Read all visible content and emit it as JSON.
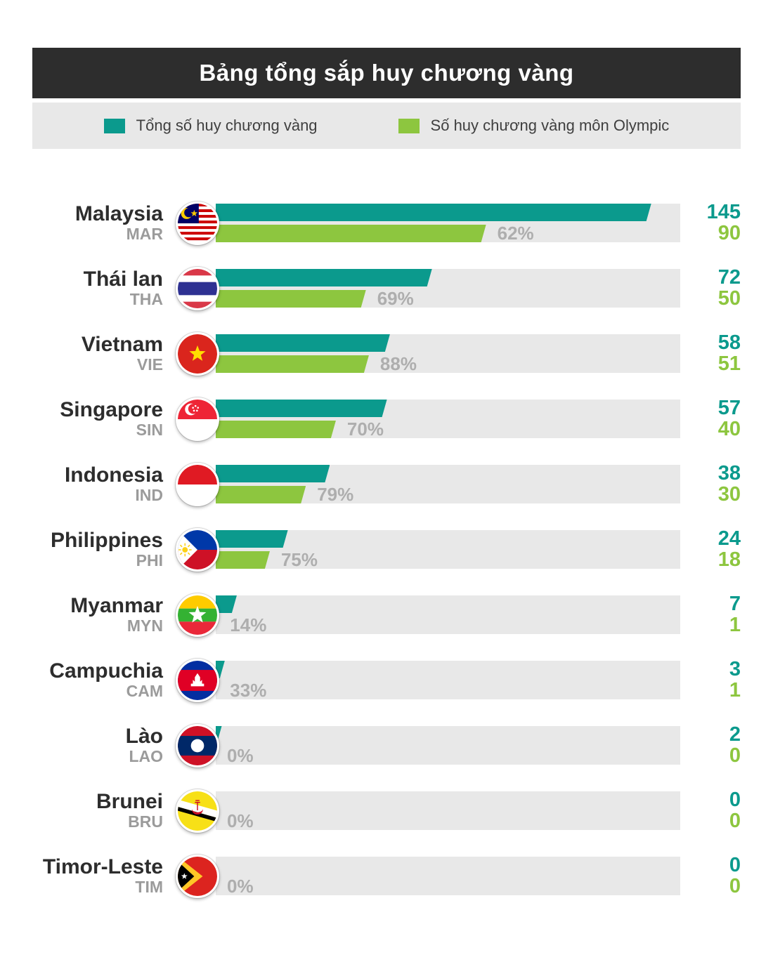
{
  "header": {
    "title": "Bảng tổng sắp huy chương vàng"
  },
  "legend": {
    "total_label": "Tổng số huy chương vàng",
    "olympic_label": "Số huy chương vàng môn Olympic"
  },
  "colors": {
    "total_bar": "#0b9a8d",
    "olympic_bar": "#8dc63f",
    "header_bg": "#2d2d2d",
    "track_bg": "#e8e8e8",
    "percent_text": "#aeaeae"
  },
  "chart_data": {
    "type": "bar",
    "orientation": "horizontal",
    "title": "Bảng tổng sắp huy chương vàng",
    "max_value": 145,
    "series": [
      {
        "name": "Tổng số huy chương vàng",
        "color": "#0b9a8d"
      },
      {
        "name": "Số huy chương vàng môn Olympic",
        "color": "#8dc63f"
      }
    ],
    "rows": [
      {
        "country": "Malaysia",
        "code": "MAR",
        "flag": "malaysia",
        "total": 145,
        "olympic": 90,
        "percent": "62%"
      },
      {
        "country": "Thái lan",
        "code": "THA",
        "flag": "thailand",
        "total": 72,
        "olympic": 50,
        "percent": "69%"
      },
      {
        "country": "Vietnam",
        "code": "VIE",
        "flag": "vietnam",
        "total": 58,
        "olympic": 51,
        "percent": "88%"
      },
      {
        "country": "Singapore",
        "code": "SIN",
        "flag": "singapore",
        "total": 57,
        "olympic": 40,
        "percent": "70%"
      },
      {
        "country": "Indonesia",
        "code": "IND",
        "flag": "indonesia",
        "total": 38,
        "olympic": 30,
        "percent": "79%"
      },
      {
        "country": "Philippines",
        "code": "PHI",
        "flag": "philippines",
        "total": 24,
        "olympic": 18,
        "percent": "75%"
      },
      {
        "country": "Myanmar",
        "code": "MYN",
        "flag": "myanmar",
        "total": 7,
        "olympic": 1,
        "percent": "14%"
      },
      {
        "country": "Campuchia",
        "code": "CAM",
        "flag": "cambodia",
        "total": 3,
        "olympic": 1,
        "percent": "33%"
      },
      {
        "country": "Lào",
        "code": "LAO",
        "flag": "laos",
        "total": 2,
        "olympic": 0,
        "percent": "0%"
      },
      {
        "country": "Brunei",
        "code": "BRU",
        "flag": "brunei",
        "total": 0,
        "olympic": 0,
        "percent": "0%"
      },
      {
        "country": "Timor-Leste",
        "code": "TIM",
        "flag": "timor-leste",
        "total": 0,
        "olympic": 0,
        "percent": "0%"
      }
    ]
  }
}
